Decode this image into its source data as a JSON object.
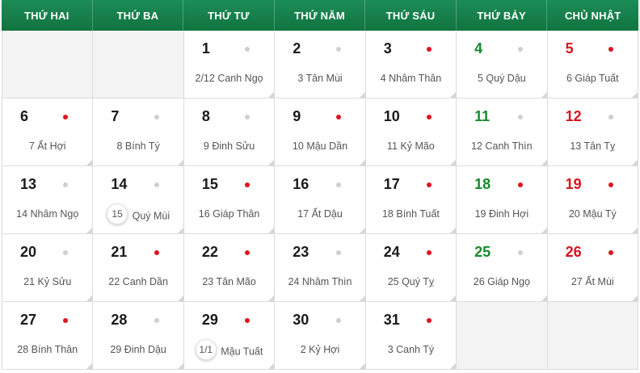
{
  "weekdays": [
    "THỨ HAI",
    "THỨ BA",
    "THỨ TƯ",
    "THỨ NĂM",
    "THỨ SÁU",
    "THỨ BẢY",
    "CHỦ NHẬT"
  ],
  "colors": {
    "header": "#11743f",
    "saturday": "#158a2d",
    "sunday": "#d8141d",
    "good_day_dot": "#e0141d",
    "normal_day_dot": "#cfcfcf"
  },
  "days": [
    {
      "empty": true
    },
    {
      "empty": true
    },
    {
      "solar": "1",
      "lunar_num": "2/12",
      "lunar_name": "Canh Ngọ",
      "dot": "normal"
    },
    {
      "solar": "2",
      "lunar_num": "3",
      "lunar_name": "Tân Mùi",
      "dot": "normal"
    },
    {
      "solar": "3",
      "lunar_num": "4",
      "lunar_name": "Nhâm Thân",
      "dot": "good"
    },
    {
      "solar": "4",
      "lunar_num": "5",
      "lunar_name": "Quý Dậu",
      "dot": "normal"
    },
    {
      "solar": "5",
      "lunar_num": "6",
      "lunar_name": "Giáp Tuất",
      "dot": "good"
    },
    {
      "solar": "6",
      "lunar_num": "7",
      "lunar_name": "Ất Hợi",
      "dot": "good"
    },
    {
      "solar": "7",
      "lunar_num": "8",
      "lunar_name": "Bính Tý",
      "dot": "normal"
    },
    {
      "solar": "8",
      "lunar_num": "9",
      "lunar_name": "Đinh Sửu",
      "dot": "normal"
    },
    {
      "solar": "9",
      "lunar_num": "10",
      "lunar_name": "Mậu Dần",
      "dot": "good"
    },
    {
      "solar": "10",
      "lunar_num": "11",
      "lunar_name": "Kỷ Mão",
      "dot": "good"
    },
    {
      "solar": "11",
      "lunar_num": "12",
      "lunar_name": "Canh Thìn",
      "dot": "normal"
    },
    {
      "solar": "12",
      "lunar_num": "13",
      "lunar_name": "Tân Tỵ",
      "dot": "normal"
    },
    {
      "solar": "13",
      "lunar_num": "14",
      "lunar_name": "Nhâm Ngọ",
      "dot": "normal"
    },
    {
      "solar": "14",
      "lunar_num": "15",
      "lunar_name": "Quý Mùi",
      "dot": "normal",
      "badge": true
    },
    {
      "solar": "15",
      "lunar_num": "16",
      "lunar_name": "Giáp Thân",
      "dot": "good"
    },
    {
      "solar": "16",
      "lunar_num": "17",
      "lunar_name": "Ất Dậu",
      "dot": "normal"
    },
    {
      "solar": "17",
      "lunar_num": "18",
      "lunar_name": "Bính Tuất",
      "dot": "good"
    },
    {
      "solar": "18",
      "lunar_num": "19",
      "lunar_name": "Đinh Hợi",
      "dot": "good"
    },
    {
      "solar": "19",
      "lunar_num": "20",
      "lunar_name": "Mậu Tý",
      "dot": "good"
    },
    {
      "solar": "20",
      "lunar_num": "21",
      "lunar_name": "Kỷ Sửu",
      "dot": "normal"
    },
    {
      "solar": "21",
      "lunar_num": "22",
      "lunar_name": "Canh Dần",
      "dot": "good"
    },
    {
      "solar": "22",
      "lunar_num": "23",
      "lunar_name": "Tân Mão",
      "dot": "good"
    },
    {
      "solar": "23",
      "lunar_num": "24",
      "lunar_name": "Nhâm Thìn",
      "dot": "normal"
    },
    {
      "solar": "24",
      "lunar_num": "25",
      "lunar_name": "Quý Tỵ",
      "dot": "good"
    },
    {
      "solar": "25",
      "lunar_num": "26",
      "lunar_name": "Giáp Ngọ",
      "dot": "normal"
    },
    {
      "solar": "26",
      "lunar_num": "27",
      "lunar_name": "Ất Mùi",
      "dot": "good"
    },
    {
      "solar": "27",
      "lunar_num": "28",
      "lunar_name": "Bính Thân",
      "dot": "good"
    },
    {
      "solar": "28",
      "lunar_num": "29",
      "lunar_name": "Đinh Dậu",
      "dot": "normal"
    },
    {
      "solar": "29",
      "lunar_num": "1/1",
      "lunar_name": "Mậu Tuất",
      "dot": "good",
      "badge": true
    },
    {
      "solar": "30",
      "lunar_num": "2",
      "lunar_name": "Kỷ Hợi",
      "dot": "normal"
    },
    {
      "solar": "31",
      "lunar_num": "3",
      "lunar_name": "Canh Tý",
      "dot": "good"
    },
    {
      "empty": true
    },
    {
      "empty": true
    }
  ]
}
